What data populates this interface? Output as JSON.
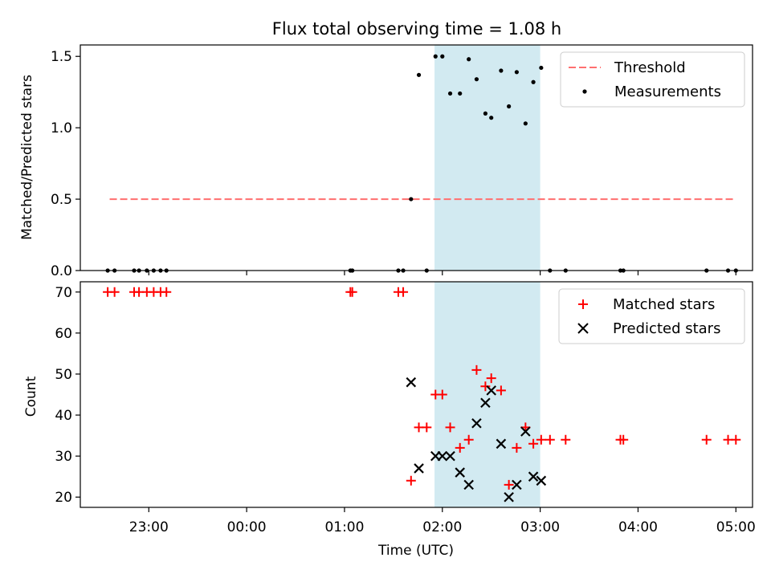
{
  "chart_data": [
    {
      "type": "scatter",
      "title": "Flux total observing time = 1.08 h",
      "ylabel": "Matched/Predicted stars",
      "ylim": [
        0,
        1.58
      ],
      "yticks": [
        0,
        0.5,
        1.0,
        1.5
      ],
      "ytick_labels": [
        "0.0",
        "0.5",
        "1.0",
        "1.5"
      ],
      "xlim_hours": [
        -1.7,
        5.17
      ],
      "shaded_span_hours": [
        1.92,
        3.0
      ],
      "threshold": {
        "name": "Threshold",
        "value": 0.5,
        "x_start": -1.4,
        "x_end": 5.0,
        "color": "#ff6f6f"
      },
      "series": [
        {
          "name": "Measurements",
          "color": "#000000",
          "x": [
            -1.42,
            -1.35,
            -1.15,
            -1.1,
            -1.02,
            -0.95,
            -0.88,
            -0.82,
            1.06,
            1.08,
            1.55,
            1.6,
            1.68,
            1.76,
            1.84,
            1.93,
            2.0,
            2.08,
            2.18,
            2.27,
            2.35,
            2.44,
            2.5,
            2.6,
            2.68,
            2.76,
            2.85,
            2.93,
            3.01,
            3.1,
            3.26,
            3.82,
            3.85,
            4.7,
            4.92,
            5.0
          ],
          "y": [
            0.0,
            0.0,
            0.0,
            0.0,
            0.0,
            0.0,
            0.0,
            0.0,
            0.0,
            0.0,
            0.0,
            0.0,
            0.5,
            1.37,
            0.0,
            1.5,
            1.5,
            1.24,
            1.24,
            1.48,
            1.34,
            1.1,
            1.07,
            1.4,
            1.15,
            1.39,
            1.03,
            1.32,
            1.42,
            0.0,
            0.0,
            0.0,
            0.0,
            0.0,
            0.0,
            0.0
          ]
        }
      ],
      "legend": {
        "position": "top-right",
        "entries": [
          "Threshold",
          "Measurements"
        ]
      }
    },
    {
      "type": "scatter",
      "xlabel": "Time (UTC)",
      "ylabel": "Count",
      "ylim": [
        17.5,
        72.5
      ],
      "yticks": [
        20,
        30,
        40,
        50,
        60,
        70
      ],
      "ytick_labels": [
        "20",
        "30",
        "40",
        "50",
        "60",
        "70"
      ],
      "xlim_hours": [
        -1.7,
        5.17
      ],
      "xticks_hours": [
        -1,
        0,
        1,
        2,
        3,
        4,
        5
      ],
      "xtick_labels": [
        "23:00",
        "00:00",
        "01:00",
        "02:00",
        "03:00",
        "04:00",
        "05:00"
      ],
      "shaded_span_hours": [
        1.92,
        3.0
      ],
      "series": [
        {
          "name": "Matched stars",
          "marker": "plus",
          "color": "#ff0000",
          "x": [
            -1.42,
            -1.35,
            -1.15,
            -1.1,
            -1.02,
            -0.95,
            -0.88,
            -0.82,
            1.06,
            1.08,
            1.55,
            1.6,
            1.68,
            1.76,
            1.84,
            1.93,
            2.0,
            2.08,
            2.18,
            2.27,
            2.35,
            2.44,
            2.5,
            2.6,
            2.68,
            2.76,
            2.85,
            2.93,
            3.01,
            3.1,
            3.26,
            3.82,
            3.85,
            4.7,
            4.92,
            5.0
          ],
          "y": [
            70,
            70,
            70,
            70,
            70,
            70,
            70,
            70,
            70,
            70,
            70,
            70,
            24,
            37,
            37,
            45,
            45,
            37,
            32,
            34,
            51,
            47,
            49,
            46,
            23,
            32,
            37,
            33,
            34,
            34,
            34,
            34,
            34,
            34,
            34,
            34
          ]
        },
        {
          "name": "Predicted stars",
          "marker": "x",
          "color": "#000000",
          "x": [
            1.68,
            1.76,
            1.93,
            2.0,
            2.08,
            2.18,
            2.27,
            2.35,
            2.44,
            2.5,
            2.6,
            2.68,
            2.76,
            2.85,
            2.93,
            3.01
          ],
          "y": [
            48,
            27,
            30,
            30,
            30,
            26,
            23,
            38,
            43,
            46,
            33,
            20,
            23,
            36,
            25,
            24
          ]
        }
      ],
      "legend": {
        "position": "top-right",
        "entries": [
          "Matched stars",
          "Predicted stars"
        ]
      }
    }
  ]
}
